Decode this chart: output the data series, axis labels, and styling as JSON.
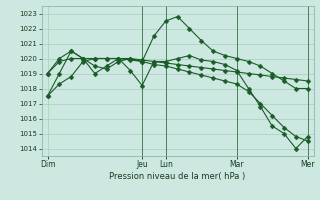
{
  "background_color": "#cce8e0",
  "grid_color": "#aaccbb",
  "line_color": "#1a5c28",
  "marker_color": "#1a5c28",
  "xlabel": "Pression niveau de la mer( hPa )",
  "ylim": [
    1013.5,
    1023.5
  ],
  "yticks": [
    1014,
    1015,
    1016,
    1017,
    1018,
    1019,
    1020,
    1021,
    1022,
    1023
  ],
  "day_labels": [
    "Dim",
    "Jeu",
    "Lun",
    "Mar",
    "Mer"
  ],
  "day_positions": [
    0,
    8,
    10,
    16,
    22
  ],
  "vline_positions": [
    8,
    10,
    16,
    22
  ],
  "series1_x": [
    0,
    1,
    2,
    3,
    4,
    5,
    6,
    7,
    8,
    9,
    10,
    11,
    12,
    13,
    14,
    15,
    16,
    17,
    18,
    19,
    20,
    21,
    22
  ],
  "series1_y": [
    1019.0,
    1019.8,
    1020.0,
    1020.0,
    1020.0,
    1020.0,
    1020.0,
    1020.0,
    1019.9,
    1019.8,
    1019.7,
    1019.6,
    1019.5,
    1019.4,
    1019.3,
    1019.2,
    1019.1,
    1019.0,
    1018.9,
    1018.8,
    1018.7,
    1018.6,
    1018.5
  ],
  "series2_x": [
    0,
    1,
    2,
    3,
    4,
    5,
    6,
    7,
    8,
    9,
    10,
    11,
    12,
    13,
    14,
    15,
    16,
    17,
    18,
    19,
    20,
    21,
    22
  ],
  "series2_y": [
    1017.5,
    1018.3,
    1018.8,
    1019.8,
    1020.0,
    1020.0,
    1020.0,
    1019.9,
    1019.8,
    1019.6,
    1019.5,
    1019.3,
    1019.1,
    1018.9,
    1018.7,
    1018.5,
    1018.3,
    1017.8,
    1017.0,
    1016.2,
    1015.4,
    1014.8,
    1014.5
  ],
  "series3_x": [
    0,
    1,
    2,
    3,
    4,
    5,
    6,
    7,
    8,
    9,
    10,
    11,
    12,
    13,
    14,
    15,
    16,
    17,
    18,
    19,
    20,
    21,
    22
  ],
  "series3_y": [
    1019.0,
    1020.0,
    1020.5,
    1020.0,
    1019.5,
    1019.3,
    1019.8,
    1020.0,
    1019.8,
    1021.5,
    1022.5,
    1022.8,
    1022.0,
    1021.2,
    1020.5,
    1020.2,
    1020.0,
    1019.8,
    1019.5,
    1019.0,
    1018.5,
    1018.0,
    1018.0
  ],
  "series4_x": [
    0,
    1,
    2,
    3,
    4,
    5,
    6,
    7,
    8,
    9,
    10,
    11,
    12,
    13,
    14,
    15,
    16,
    17,
    18,
    19,
    20,
    21,
    22
  ],
  "series4_y": [
    1017.5,
    1019.0,
    1020.5,
    1020.0,
    1019.0,
    1019.5,
    1020.0,
    1019.2,
    1018.2,
    1019.8,
    1019.8,
    1020.0,
    1020.2,
    1019.9,
    1019.8,
    1019.6,
    1019.2,
    1018.0,
    1016.8,
    1015.5,
    1015.0,
    1014.0,
    1014.8
  ]
}
